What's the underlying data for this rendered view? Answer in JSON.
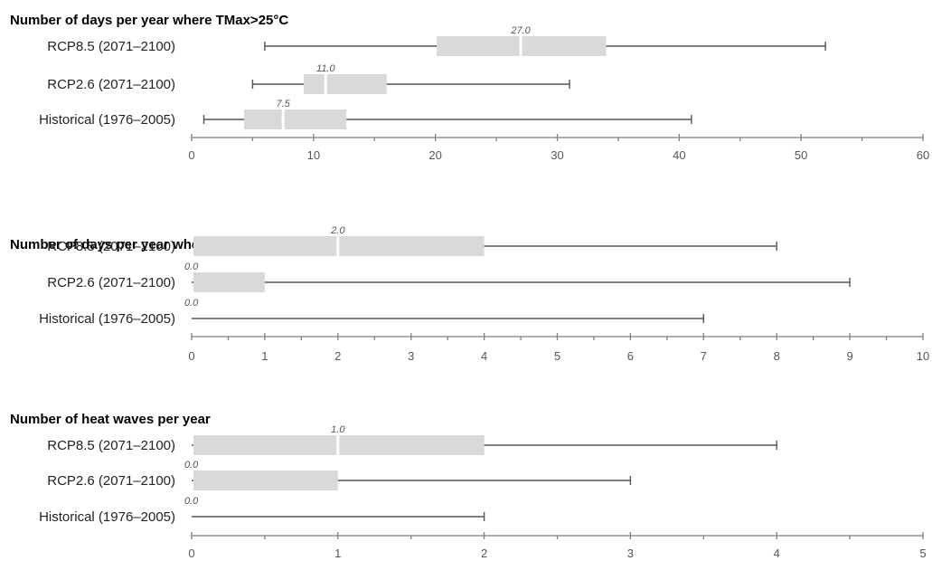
{
  "chart_data": [
    {
      "type": "boxplot",
      "title": "Number of days per year where TMax>25°C",
      "categories": [
        "RCP8.5 (2071–2100)",
        "RCP2.6 (2071–2100)",
        "Historical (1976–2005)"
      ],
      "xlim": [
        0,
        60
      ],
      "major_ticks": [
        0,
        10,
        20,
        30,
        40,
        50,
        60
      ],
      "tick_labels": [
        "0",
        "10",
        "20",
        "30",
        "40",
        "50",
        "60"
      ],
      "minor_step": 5,
      "series": [
        {
          "min": 6,
          "q1": 20.1,
          "median": 27.0,
          "q3": 34,
          "max": 52,
          "median_label": "27.0"
        },
        {
          "min": 5,
          "q1": 9.2,
          "median": 11.0,
          "q3": 16,
          "max": 31,
          "median_label": "11.0"
        },
        {
          "min": 1,
          "q1": 4.3,
          "median": 7.5,
          "q3": 12.7,
          "max": 41,
          "median_label": "7.5"
        }
      ]
    },
    {
      "type": "boxplot",
      "title": "Number of days per year where TMax>30°C",
      "categories": [
        "RCP8.5 (2071–2100)",
        "RCP2.6 (2071–2100)",
        "Historical (1976–2005)"
      ],
      "xlim": [
        0,
        10
      ],
      "major_ticks": [
        0,
        1,
        2,
        3,
        4,
        5,
        6,
        7,
        8,
        9,
        10
      ],
      "tick_labels": [
        "0",
        "1",
        "2",
        "3",
        "4",
        "5",
        "6",
        "7",
        "8",
        "9",
        "10"
      ],
      "minor_step": 0.5,
      "series": [
        {
          "min": 0,
          "q1": 0,
          "median": 2.0,
          "q3": 4,
          "max": 8,
          "median_label": "2.0"
        },
        {
          "min": 0,
          "q1": 0,
          "median": 0.0,
          "q3": 1,
          "max": 9,
          "median_label": "0.0"
        },
        {
          "min": 0,
          "q1": 0,
          "median": 0.0,
          "q3": 0,
          "max": 7,
          "median_label": "0.0"
        }
      ]
    },
    {
      "type": "boxplot",
      "title": "Number of heat waves per year",
      "categories": [
        "RCP8.5 (2071–2100)",
        "RCP2.6 (2071–2100)",
        "Historical (1976–2005)"
      ],
      "xlim": [
        0,
        5
      ],
      "major_ticks": [
        0,
        1,
        2,
        3,
        4,
        5
      ],
      "tick_labels": [
        "0",
        "1",
        "2",
        "3",
        "4",
        "5"
      ],
      "minor_step": 0.5,
      "series": [
        {
          "min": 0,
          "q1": 0,
          "median": 1.0,
          "q3": 2,
          "max": 4,
          "median_label": "1.0"
        },
        {
          "min": 0,
          "q1": 0,
          "median": 0.0,
          "q3": 1,
          "max": 3,
          "median_label": "0.0"
        },
        {
          "min": 0,
          "q1": 0,
          "median": 0.0,
          "q3": 0,
          "max": 2,
          "median_label": "0.0"
        }
      ]
    }
  ]
}
